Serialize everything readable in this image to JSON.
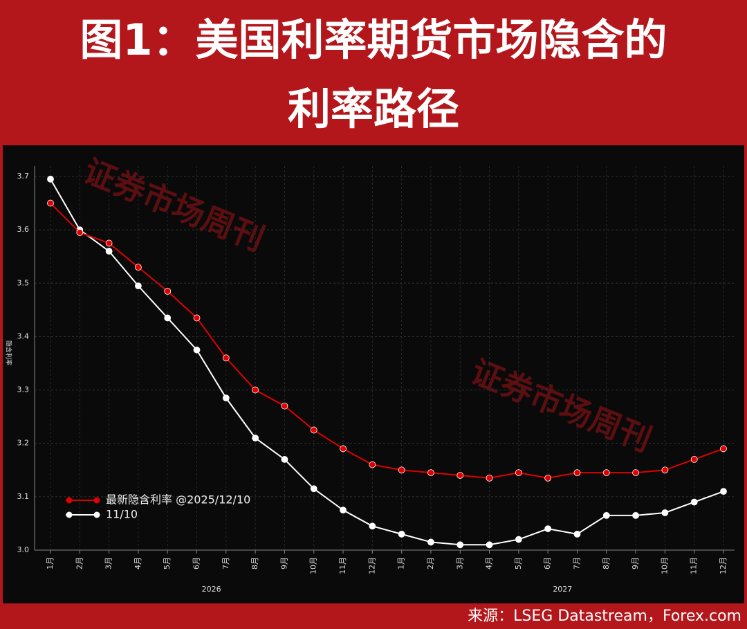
{
  "header": {
    "title_lines": [
      "图1：美国利率期货市场隐含的",
      "利率路径"
    ]
  },
  "chart_data": {
    "type": "line",
    "ylabel": "隐含利率",
    "categories": [
      "1月",
      "2月",
      "3月",
      "4月",
      "5月",
      "6月",
      "7月",
      "8月",
      "9月",
      "10月",
      "11月",
      "12月",
      "1月",
      "2月",
      "3月",
      "4月",
      "5月",
      "6月",
      "7月",
      "8月",
      "9月",
      "10月",
      "11月",
      "12月"
    ],
    "year_groups": [
      "2026",
      "2027"
    ],
    "series": [
      {
        "name": "最新隐含利率 @2025/12/10",
        "color": "#e00000",
        "values": [
          3.65,
          3.595,
          3.575,
          3.53,
          3.485,
          3.435,
          3.36,
          3.3,
          3.27,
          3.225,
          3.19,
          3.16,
          3.15,
          3.145,
          3.14,
          3.135,
          3.145,
          3.135,
          3.145,
          3.145,
          3.145,
          3.15,
          3.17,
          3.19
        ]
      },
      {
        "name": "11/10",
        "color": "#ffffff",
        "values": [
          3.695,
          3.6,
          3.56,
          3.495,
          3.435,
          3.375,
          3.285,
          3.21,
          3.17,
          3.115,
          3.075,
          3.045,
          3.03,
          3.015,
          3.01,
          3.01,
          3.02,
          3.04,
          3.03,
          3.065,
          3.065,
          3.07,
          3.09,
          3.11
        ]
      }
    ],
    "ylim": [
      3.0,
      3.7
    ],
    "yticks": [
      {
        "value": 3.0,
        "label": "3.0"
      },
      3.1,
      3.2,
      3.3,
      3.4,
      3.5,
      3.6,
      3.7
    ],
    "grid": true,
    "legend": "lower-left",
    "watermark": "证券市场周刊"
  },
  "footer": {
    "source": "来源：LSEG Datastream，Forex.com"
  }
}
